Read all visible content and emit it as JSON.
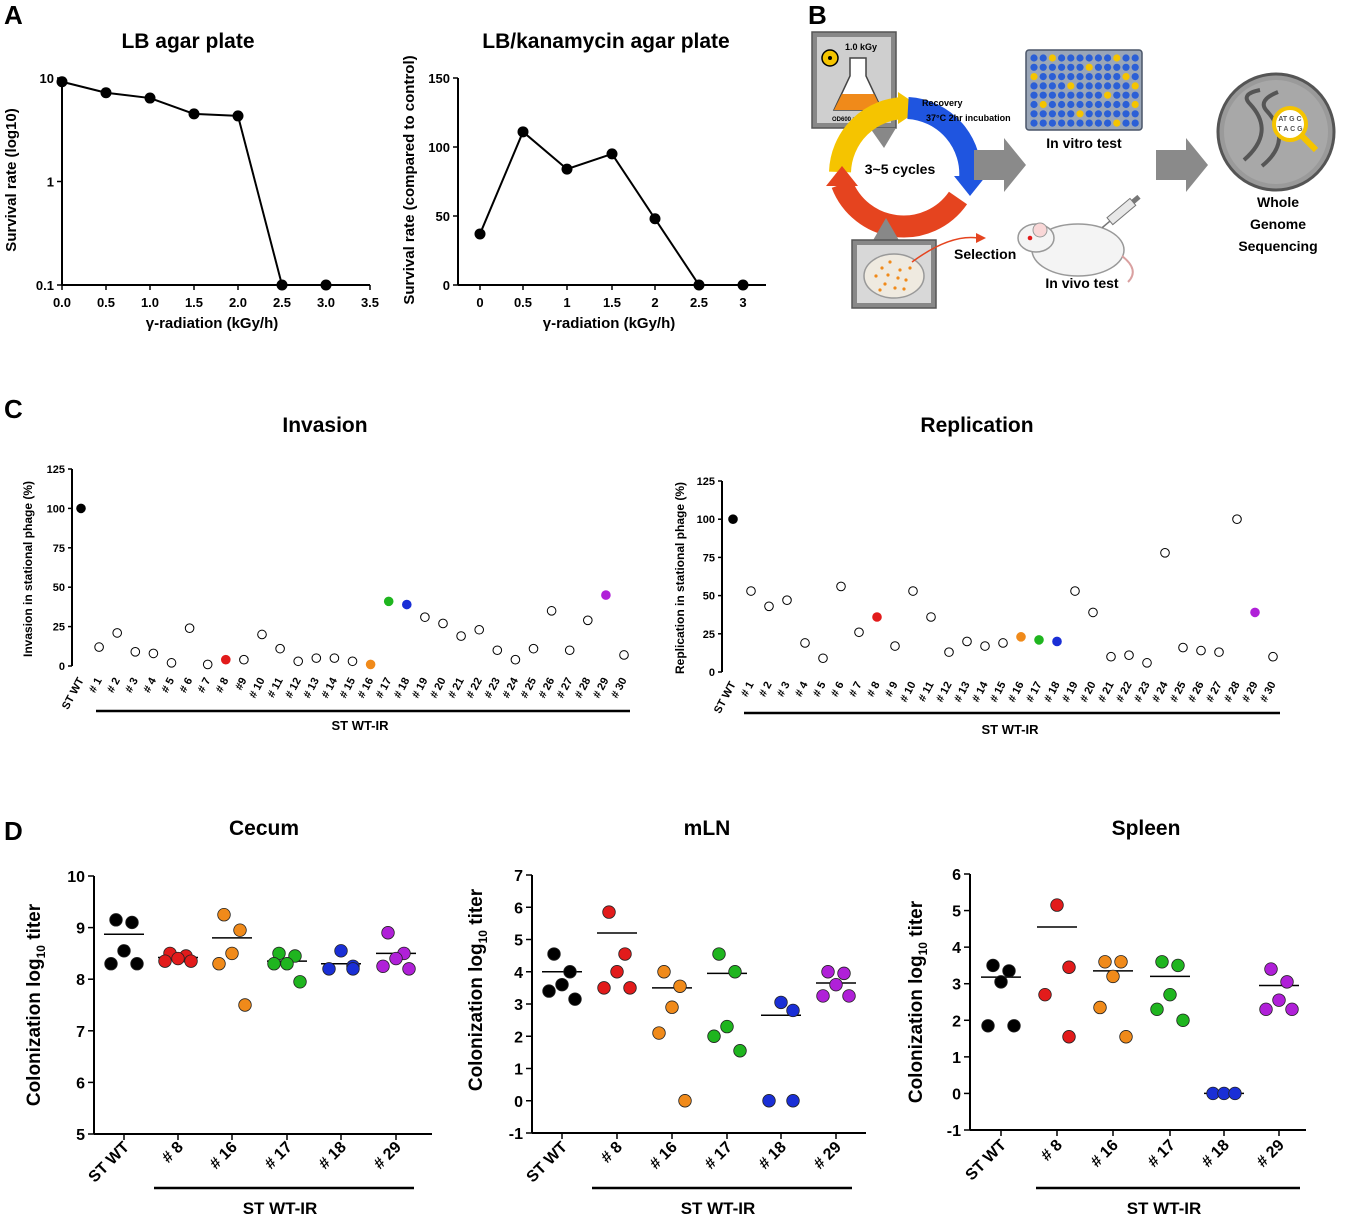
{
  "panel_labels": [
    "A",
    "B",
    "C",
    "D"
  ],
  "diagram": {
    "dose_label": "1.0 kGy",
    "od_label": "OD600 = 0.5",
    "recovery_label": "Recovery",
    "incubation_label": "37°C 2hr incubation",
    "cycles_label": "3~5 cycles",
    "selection_label": "Selection",
    "in_vitro_label": "In vitro test",
    "in_vivo_label": "In vivo test",
    "wgs_label": [
      "Whole",
      "Genome",
      "Sequencing"
    ],
    "colors": {
      "yellow": "#f5c400",
      "blue": "#1f55e0",
      "red": "#e5441f",
      "orange": "#f08a1a",
      "plate": "#2b5fd6",
      "gray": "#8a8a8a"
    }
  },
  "chart_data": [
    {
      "id": "A1",
      "type": "line",
      "title": "LB agar plate",
      "xlabel": "γ-radiation (kGy/h)",
      "ylabel": "Survival rate (log10)",
      "x": [
        0.0,
        0.5,
        1.0,
        1.5,
        2.0,
        2.5,
        3.0
      ],
      "y": [
        9.2,
        7.2,
        6.4,
        4.5,
        4.3,
        0.1,
        0.1
      ],
      "yscale": "log",
      "ylim": [
        0.1,
        10
      ],
      "xlim": [
        0,
        3.5
      ],
      "xticks": [
        "0.0",
        "0.5",
        "1.0",
        "1.5",
        "2.0",
        "2.5",
        "3.0",
        "3.5"
      ],
      "yticks": [
        "0.1",
        "1",
        "10"
      ],
      "line_segments": [
        [
          0,
          1
        ],
        [
          1,
          2
        ],
        [
          2,
          3
        ],
        [
          3,
          4
        ],
        [
          4,
          5
        ]
      ]
    },
    {
      "id": "A2",
      "type": "line",
      "title": "LB/kanamycin agar plate",
      "xlabel": "γ-radiation (kGy/h)",
      "ylabel": "Survival rate (compared to control)",
      "x": [
        0,
        0.5,
        1,
        1.5,
        2,
        2.5,
        3
      ],
      "y": [
        37,
        111,
        84,
        95,
        48,
        0,
        0
      ],
      "ylim": [
        0,
        150
      ],
      "xticks": [
        "0",
        "0.5",
        "1",
        "1.5",
        "2",
        "2.5",
        "3"
      ],
      "yticks": [
        "0",
        "50",
        "100",
        "150"
      ]
    },
    {
      "id": "C1",
      "type": "scatter",
      "title": "Invasion",
      "ylabel": "Invasion in stational phage (%)",
      "group_label": "ST WT-IR",
      "categories": [
        "ST WT",
        "# 1",
        "# 2",
        "# 3",
        "# 4",
        "# 5",
        "# 6",
        "# 7",
        "# 8",
        "#9",
        "# 10",
        "# 11",
        "# 12",
        "# 13",
        "# 14",
        "# 15",
        "# 16",
        "# 17",
        "# 18",
        "# 19",
        "# 20",
        "# 21",
        "# 22",
        "# 23",
        "# 24",
        "# 25",
        "# 26",
        "# 27",
        "# 28",
        "# 29",
        "# 30"
      ],
      "values": [
        100,
        12,
        21,
        9,
        8,
        2,
        24,
        1,
        4,
        4,
        20,
        11,
        3,
        5,
        5,
        3,
        1,
        41,
        39,
        31,
        27,
        19,
        23,
        10,
        4,
        11,
        35,
        10,
        29,
        45,
        7
      ],
      "colors": [
        "#000000",
        "#ffffff",
        "#ffffff",
        "#ffffff",
        "#ffffff",
        "#ffffff",
        "#ffffff",
        "#ffffff",
        "#e21b1b",
        "#ffffff",
        "#ffffff",
        "#ffffff",
        "#ffffff",
        "#ffffff",
        "#ffffff",
        "#ffffff",
        "#f08a1a",
        "#1fb51f",
        "#1a2fd6",
        "#ffffff",
        "#ffffff",
        "#ffffff",
        "#ffffff",
        "#ffffff",
        "#ffffff",
        "#ffffff",
        "#ffffff",
        "#ffffff",
        "#ffffff",
        "#b020d8",
        "#ffffff"
      ],
      "ylim": [
        0,
        125
      ],
      "yticks": [
        "0",
        "25",
        "50",
        "75",
        "100",
        "125"
      ]
    },
    {
      "id": "C2",
      "type": "scatter",
      "title": "Replication",
      "ylabel": "Replication in stational phage (%)",
      "group_label": "ST WT-IR",
      "categories": [
        "ST WT",
        "# 1",
        "# 2",
        "# 3",
        "# 4",
        "# 5",
        "# 6",
        "# 7",
        "# 8",
        "# 9",
        "# 10",
        "# 11",
        "# 12",
        "# 13",
        "# 14",
        "# 15",
        "# 16",
        "# 17",
        "# 18",
        "# 19",
        "# 20",
        "# 21",
        "# 22",
        "# 23",
        "# 24",
        "# 25",
        "# 26",
        "# 27",
        "# 28",
        "# 29",
        "# 30"
      ],
      "values": [
        100,
        53,
        43,
        47,
        19,
        9,
        56,
        26,
        36,
        17,
        53,
        36,
        13,
        20,
        17,
        19,
        23,
        21,
        20,
        53,
        39,
        10,
        11,
        6,
        78,
        16,
        14,
        13,
        100,
        39,
        10
      ],
      "colors": [
        "#000000",
        "#ffffff",
        "#ffffff",
        "#ffffff",
        "#ffffff",
        "#ffffff",
        "#ffffff",
        "#ffffff",
        "#e21b1b",
        "#ffffff",
        "#ffffff",
        "#ffffff",
        "#ffffff",
        "#ffffff",
        "#ffffff",
        "#ffffff",
        "#f08a1a",
        "#1fb51f",
        "#1a2fd6",
        "#ffffff",
        "#ffffff",
        "#ffffff",
        "#ffffff",
        "#ffffff",
        "#ffffff",
        "#ffffff",
        "#ffffff",
        "#ffffff",
        "#ffffff",
        "#b020d8",
        "#ffffff"
      ],
      "ylim": [
        0,
        125
      ],
      "yticks": [
        "0",
        "25",
        "50",
        "75",
        "100",
        "125"
      ]
    },
    {
      "id": "D1",
      "type": "scatter",
      "title": "Cecum",
      "ylabel_main": "Colonization log",
      "ylabel_sub": "10",
      "ylabel_end": " titer",
      "group_label": "ST WT-IR",
      "categories": [
        "ST WT",
        "# 8",
        "# 16",
        "# 17",
        "# 18",
        "# 29"
      ],
      "colors": [
        "#000000",
        "#e21b1b",
        "#f08a1a",
        "#1fb51f",
        "#1a2fd6",
        "#b020d8"
      ],
      "series": [
        {
          "name": "ST WT",
          "values": [
            9.15,
            9.1,
            8.55,
            8.3,
            8.3
          ],
          "mean": 8.87
        },
        {
          "name": "# 8",
          "values": [
            8.5,
            8.45,
            8.4,
            8.35,
            8.35
          ],
          "mean": 8.42
        },
        {
          "name": "# 16",
          "values": [
            9.25,
            8.95,
            8.5,
            8.3,
            7.5
          ],
          "mean": 8.8
        },
        {
          "name": "# 17",
          "values": [
            8.5,
            8.45,
            8.3,
            8.3,
            7.95
          ],
          "mean": 8.35
        },
        {
          "name": "# 18",
          "values": [
            8.55,
            8.25,
            8.2,
            8.2
          ],
          "mean": 8.3
        },
        {
          "name": "# 29",
          "values": [
            8.9,
            8.5,
            8.4,
            8.25,
            8.2
          ],
          "mean": 8.5
        }
      ],
      "ylim": [
        5,
        10
      ],
      "yticks": [
        "5",
        "6",
        "7",
        "8",
        "9",
        "10"
      ]
    },
    {
      "id": "D2",
      "type": "scatter",
      "title": "mLN",
      "ylabel_main": "Colonization log",
      "ylabel_sub": "10",
      "ylabel_end": " titer",
      "group_label": "ST WT-IR",
      "categories": [
        "ST WT",
        "# 8",
        "# 16",
        "# 17",
        "# 18",
        "# 29"
      ],
      "colors": [
        "#000000",
        "#e21b1b",
        "#f08a1a",
        "#1fb51f",
        "#1a2fd6",
        "#b020d8"
      ],
      "series": [
        {
          "name": "ST WT",
          "values": [
            4.55,
            4.0,
            3.6,
            3.4,
            3.15
          ],
          "mean": 4.0
        },
        {
          "name": "# 8",
          "values": [
            5.85,
            4.55,
            4.0,
            3.5,
            3.5
          ],
          "mean": 5.2
        },
        {
          "name": "# 16",
          "values": [
            4.0,
            3.55,
            2.9,
            2.1,
            0.0
          ],
          "mean": 3.5
        },
        {
          "name": "# 17",
          "values": [
            4.55,
            4.0,
            2.3,
            2.0,
            1.55
          ],
          "mean": 3.95
        },
        {
          "name": "# 18",
          "values": [
            3.05,
            2.8,
            0.0,
            0.0
          ],
          "mean": 2.65
        },
        {
          "name": "# 29",
          "values": [
            4.0,
            3.95,
            3.6,
            3.25,
            3.25
          ],
          "mean": 3.65
        }
      ],
      "ylim": [
        -1,
        7
      ],
      "yticks": [
        "-1",
        "0",
        "1",
        "2",
        "3",
        "4",
        "5",
        "6",
        "7"
      ]
    },
    {
      "id": "D3",
      "type": "scatter",
      "title": "Spleen",
      "ylabel_main": "Colonization log",
      "ylabel_sub": "10",
      "ylabel_end": " titer",
      "group_label": "ST WT-IR",
      "categories": [
        "ST WT",
        "# 8",
        "# 16",
        "# 17",
        "# 18",
        "# 29"
      ],
      "colors": [
        "#000000",
        "#e21b1b",
        "#f08a1a",
        "#1fb51f",
        "#1a2fd6",
        "#b020d8"
      ],
      "series": [
        {
          "name": "ST WT",
          "values": [
            3.5,
            3.35,
            3.05,
            1.85,
            1.85
          ],
          "mean": 3.18
        },
        {
          "name": "# 8",
          "values": [
            5.15,
            3.45,
            2.7,
            1.55
          ],
          "mean": 4.55
        },
        {
          "name": "# 16",
          "values": [
            3.6,
            3.6,
            3.2,
            2.35,
            1.55
          ],
          "mean": 3.35
        },
        {
          "name": "# 17",
          "values": [
            3.6,
            3.5,
            2.7,
            2.3,
            2.0
          ],
          "mean": 3.2
        },
        {
          "name": "# 18",
          "values": [
            0.0,
            0.0,
            0.0
          ],
          "mean": 0.0
        },
        {
          "name": "# 29",
          "values": [
            3.4,
            3.05,
            2.55,
            2.3,
            2.3
          ],
          "mean": 2.95
        }
      ],
      "ylim": [
        -1,
        6
      ],
      "yticks": [
        "-1",
        "0",
        "1",
        "2",
        "3",
        "4",
        "5",
        "6"
      ]
    }
  ]
}
